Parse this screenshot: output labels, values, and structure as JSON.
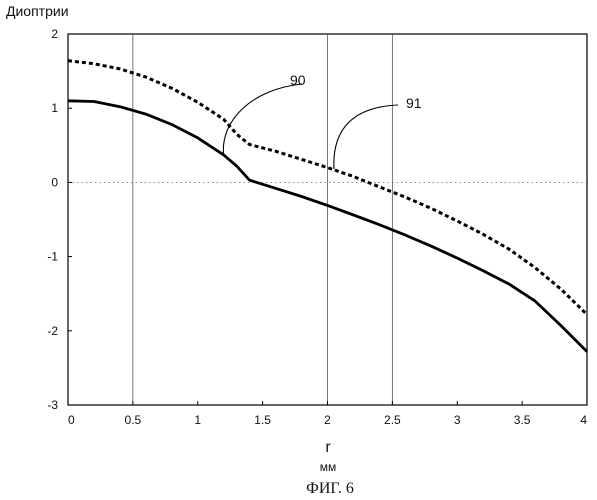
{
  "chart_data": {
    "type": "line",
    "ylabel": "Диоптрии",
    "xlabel": "r",
    "xunit": "мм",
    "caption": "ФИГ. 6",
    "xlim": [
      0,
      4
    ],
    "ylim": [
      -3,
      2
    ],
    "x_ticks": [
      "0",
      "0.5",
      "1",
      "1.5",
      "2",
      "2.5",
      "3",
      "3.5",
      "4"
    ],
    "y_ticks": [
      "2",
      "1",
      "0",
      "-1",
      "-2",
      "-3"
    ],
    "grid": {
      "vertical_at": [
        0.5,
        2,
        2.5
      ],
      "horizontal_at": [
        0
      ]
    },
    "series": [
      {
        "name": "90",
        "style": "solid",
        "x": [
          0,
          0.2,
          0.4,
          0.6,
          0.8,
          1.0,
          1.2,
          1.3,
          1.4,
          1.6,
          1.8,
          2.0,
          2.2,
          2.4,
          2.6,
          2.8,
          3.0,
          3.2,
          3.4,
          3.6,
          3.8,
          4.0
        ],
        "y": [
          1.1,
          1.09,
          1.02,
          0.92,
          0.78,
          0.6,
          0.37,
          0.22,
          0.03,
          -0.08,
          -0.19,
          -0.31,
          -0.44,
          -0.57,
          -0.71,
          -0.86,
          -1.02,
          -1.19,
          -1.37,
          -1.6,
          -1.93,
          -2.28
        ]
      },
      {
        "name": "91",
        "style": "dashed",
        "x": [
          0,
          0.2,
          0.4,
          0.6,
          0.8,
          1.0,
          1.2,
          1.3,
          1.4,
          1.6,
          1.8,
          2.0,
          2.2,
          2.4,
          2.6,
          2.8,
          3.0,
          3.2,
          3.4,
          3.6,
          3.8,
          4.0
        ],
        "y": [
          1.64,
          1.6,
          1.53,
          1.42,
          1.27,
          1.08,
          0.85,
          0.65,
          0.51,
          0.42,
          0.31,
          0.2,
          0.08,
          -0.06,
          -0.2,
          -0.35,
          -0.52,
          -0.7,
          -0.9,
          -1.15,
          -1.44,
          -1.78
        ]
      }
    ],
    "annotations": [
      {
        "text": "90",
        "target_x": 1.2,
        "target_y": 0.36
      },
      {
        "text": "91",
        "target_x": 2.05,
        "target_y": 0.18
      }
    ]
  }
}
